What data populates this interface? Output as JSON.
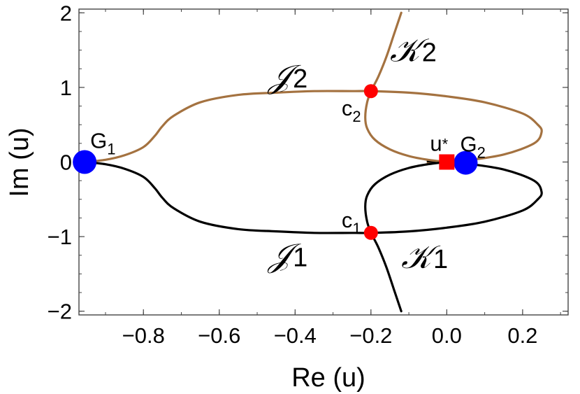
{
  "chart_data": {
    "type": "line",
    "xlabel": "Re (u)",
    "ylabel": "Im (u)",
    "xlim": [
      -0.97,
      0.32
    ],
    "ylim": [
      -2.05,
      2.05
    ],
    "x_ticks": [
      -0.8,
      -0.6,
      -0.4,
      -0.2,
      0.0,
      0.2
    ],
    "x_tick_labels": [
      "−0.8",
      "−0.6",
      "−0.4",
      "−0.2",
      "0.0",
      "0.2"
    ],
    "y_ticks": [
      -2,
      -1,
      0,
      1,
      2
    ],
    "y_tick_labels": [
      "−2",
      "−1",
      "0",
      "1",
      "2"
    ],
    "grid": false,
    "colors": {
      "upper": "#A47240",
      "lower": "#000000",
      "saddle": "#FF0000",
      "endpoint": "#0000FF",
      "marker": "#FF0000"
    },
    "series": [
      {
        "key": "J2",
        "color": "#A47240",
        "x": [
          -0.955,
          -0.9,
          -0.85,
          -0.8,
          -0.77,
          -0.75,
          -0.72,
          -0.65,
          -0.55,
          -0.45,
          -0.35,
          -0.25,
          -0.2,
          -0.1,
          0.0,
          0.1,
          0.2,
          0.24,
          0.25,
          0.23,
          0.15,
          0.05,
          0.0,
          -0.05
        ],
        "y": [
          0.0,
          0.03,
          0.09,
          0.2,
          0.35,
          0.48,
          0.62,
          0.8,
          0.9,
          0.93,
          0.95,
          0.95,
          0.95,
          0.93,
          0.88,
          0.8,
          0.65,
          0.5,
          0.4,
          0.25,
          0.1,
          0.02,
          0.0,
          -0.01
        ]
      },
      {
        "key": "J1",
        "color": "#000000",
        "x": [
          -0.955,
          -0.9,
          -0.85,
          -0.8,
          -0.77,
          -0.75,
          -0.72,
          -0.65,
          -0.55,
          -0.45,
          -0.35,
          -0.25,
          -0.2,
          -0.1,
          0.0,
          0.1,
          0.2,
          0.24,
          0.25,
          0.23,
          0.15,
          0.05,
          0.0,
          -0.05
        ],
        "y": [
          0.0,
          -0.03,
          -0.09,
          -0.2,
          -0.35,
          -0.48,
          -0.62,
          -0.8,
          -0.9,
          -0.93,
          -0.95,
          -0.95,
          -0.95,
          -0.93,
          -0.88,
          -0.8,
          -0.65,
          -0.5,
          -0.4,
          -0.25,
          -0.1,
          -0.02,
          0.0,
          0.01
        ]
      },
      {
        "key": "K2",
        "color": "#A47240",
        "x": [
          -0.12,
          -0.14,
          -0.16,
          -0.18,
          -0.195,
          -0.2,
          -0.21,
          -0.215,
          -0.21,
          -0.19,
          -0.15,
          -0.1,
          -0.05,
          0.0
        ],
        "y": [
          2.0,
          1.7,
          1.4,
          1.15,
          1.0,
          0.95,
          0.8,
          0.6,
          0.45,
          0.3,
          0.17,
          0.08,
          0.03,
          0.0
        ]
      },
      {
        "key": "K1",
        "color": "#000000",
        "x": [
          -0.12,
          -0.14,
          -0.16,
          -0.18,
          -0.195,
          -0.2,
          -0.21,
          -0.215,
          -0.21,
          -0.19,
          -0.15,
          -0.1,
          -0.05,
          0.0
        ],
        "y": [
          -2.0,
          -1.7,
          -1.4,
          -1.15,
          -1.0,
          -0.95,
          -0.8,
          -0.6,
          -0.45,
          -0.3,
          -0.17,
          -0.08,
          -0.03,
          0.0
        ]
      }
    ],
    "points": [
      {
        "key": "G1",
        "x": -0.955,
        "y": 0.0,
        "shape": "circle",
        "color": "#0000FF",
        "label": "G",
        "sub": "1"
      },
      {
        "key": "G2",
        "x": 0.05,
        "y": -0.01,
        "shape": "circle",
        "color": "#0000FF",
        "label": "G",
        "sub": "2"
      },
      {
        "key": "c2",
        "x": -0.2,
        "y": 0.95,
        "shape": "circle",
        "color": "#FF0000",
        "label": "c",
        "sub": "2"
      },
      {
        "key": "c1",
        "x": -0.2,
        "y": -0.95,
        "shape": "circle",
        "color": "#FF0000",
        "label": "c",
        "sub": "1"
      },
      {
        "key": "ustar",
        "x": 0.0,
        "y": 0.0,
        "shape": "square",
        "color": "#FF0000",
        "label": "u",
        "sub": "*"
      }
    ],
    "curve_labels": [
      {
        "key": "J2",
        "x": -0.47,
        "y": 1.0,
        "text": "𝒥",
        "sub": "2"
      },
      {
        "key": "K2",
        "x": -0.15,
        "y": 1.35,
        "text": "𝒦",
        "sub": "2"
      },
      {
        "key": "J1",
        "x": -0.47,
        "y": -1.4,
        "text": "𝒥",
        "sub": "1"
      },
      {
        "key": "K1",
        "x": -0.12,
        "y": -1.42,
        "text": "𝒦",
        "sub": "1"
      }
    ]
  }
}
